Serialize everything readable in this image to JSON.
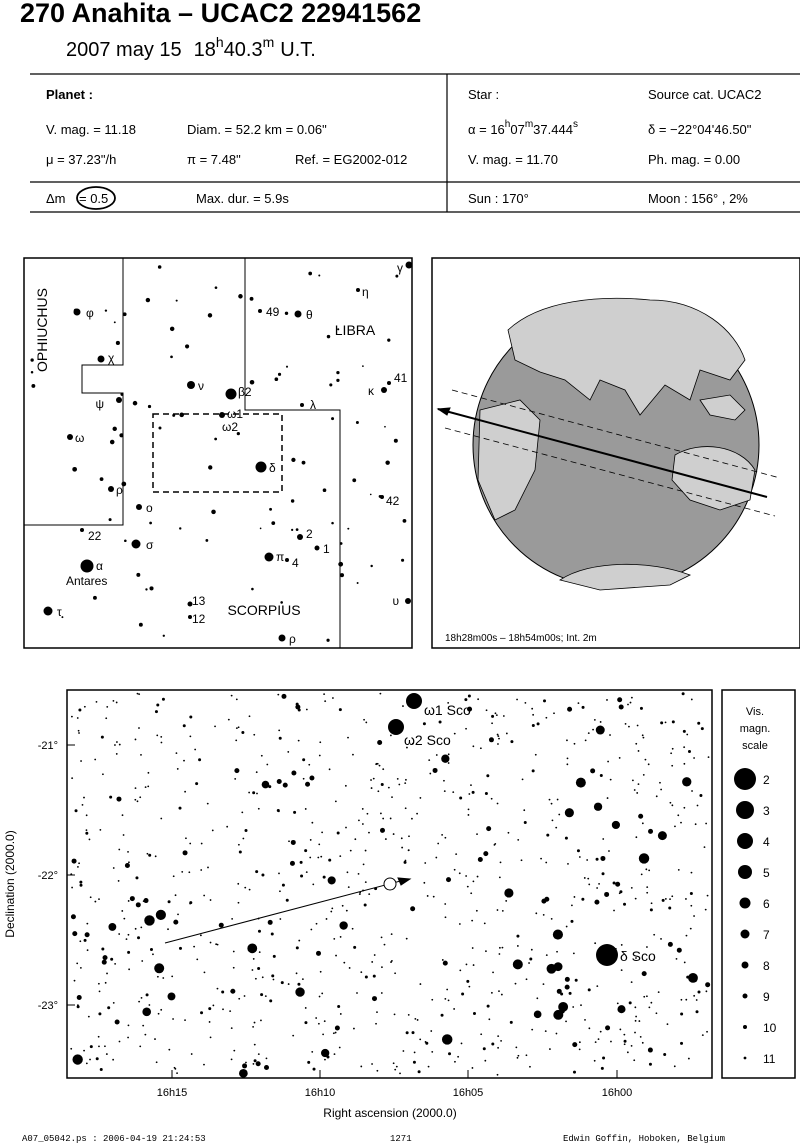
{
  "header": {
    "title": "270 Anahita  –  UCAC2 22941562",
    "date": "2007 may 15",
    "time": [
      "18",
      "h",
      "40.3",
      "m",
      "U.T."
    ]
  },
  "planet": {
    "heading": "Planet :",
    "vmag": "V. mag. = 11.18",
    "diam": "Diam. = 52.2 km = 0.06\"",
    "mu": "μ =  37.23\"/h",
    "pi": "π =  7.48\"",
    "ref": "Ref. = EG2002-012"
  },
  "star": {
    "heading": "Star :",
    "source": "Source cat.  UCAC2",
    "ra": [
      "α = 16",
      "h",
      "07",
      "m",
      "37.444",
      "s"
    ],
    "dec": "δ = −22°04'46.50\"",
    "vmag": "V. mag. = 11.70",
    "phmag": "Ph. mag. =  0.00"
  },
  "summary": {
    "dm_label": "Δm",
    "dm_value": "= 0.5",
    "maxdur": "Max. dur. = 5.9s",
    "sun": "Sun : 170°",
    "moon": "Moon : 156° ,  2%"
  },
  "finder": {
    "constellations": [
      "OPHIUCHUS",
      "LIBRA",
      "SCORPIUS"
    ],
    "labels": [
      "φ",
      "χ",
      "ψ",
      "ω",
      "ρ",
      "o",
      "22",
      "σ",
      "α",
      "Antares",
      "τ",
      "ν",
      "β2",
      "ω1",
      "ω2",
      "δ",
      "49",
      "θ",
      "η",
      "γ",
      "κ",
      "41",
      "λ",
      "42",
      "2",
      "1",
      "π",
      "4",
      "13",
      "12",
      "ρ",
      "υ"
    ]
  },
  "globe": {
    "caption": "18h28m00s – 18h54m00s; Int.  2m"
  },
  "detail": {
    "star_labels": [
      "ω1 Sco",
      "ω2 Sco",
      "δ Sco"
    ],
    "y_label": "Declination (2000.0)",
    "x_label": "Right ascension (2000.0)",
    "y_ticks": [
      "-21°",
      "-22°",
      "-23°"
    ],
    "x_ticks": [
      "16h15",
      "16h10",
      "16h05",
      "16h00"
    ]
  },
  "scale": {
    "title": [
      "Vis.",
      "magn.",
      "scale"
    ],
    "entries": [
      "2",
      "3",
      "4",
      "5",
      "6",
      "7",
      "8",
      "9",
      "10",
      "11"
    ]
  },
  "footer": {
    "file": "A07_05042.ps : 2006-04-19 21:24:53",
    "number": "1271",
    "author": "Edwin Goffin, Hoboken, Belgium"
  }
}
